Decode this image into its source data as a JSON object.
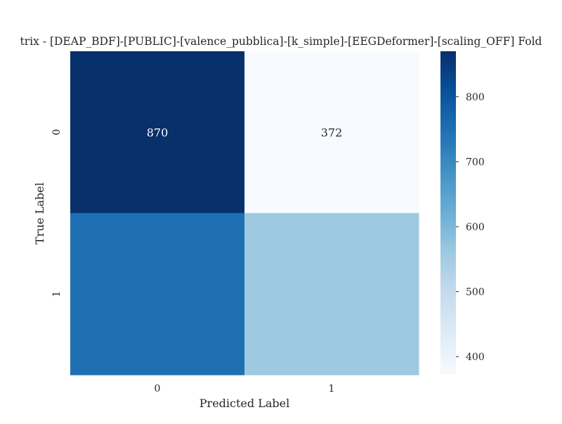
{
  "chart_data": {
    "type": "heatmap",
    "title": "trix - [DEAP_BDF]-[PUBLIC]-[valence_pubblica]-[k_simple]-[EEGDeformer]-[scaling_OFF] Fold",
    "xlabel": "Predicted Label",
    "ylabel": "True Label",
    "x_categories": [
      "0",
      "1"
    ],
    "y_categories": [
      "0",
      "1"
    ],
    "values": [
      [
        870,
        372
      ],
      [
        750,
        560
      ]
    ],
    "annotations": [
      [
        "870",
        "372"
      ],
      [
        "",
        ""
      ]
    ],
    "colormap": "Blues",
    "color_range": [
      372,
      870
    ],
    "colorbar_ticks": [
      400,
      500,
      600,
      700,
      800
    ],
    "colorbar_tick_labels": [
      "400",
      "500",
      "600",
      "700",
      "800"
    ],
    "grid": false,
    "legend": "colorbar right"
  }
}
